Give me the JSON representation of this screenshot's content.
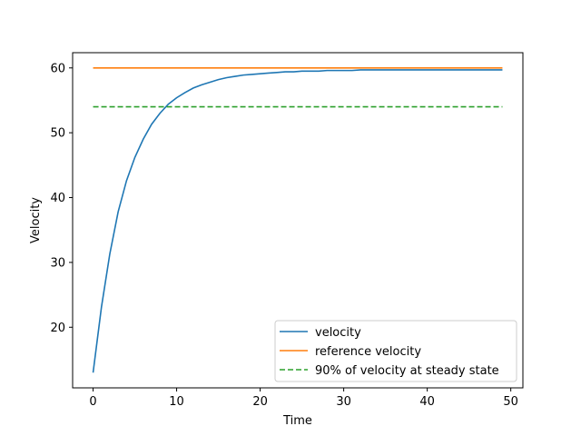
{
  "chart_data": {
    "type": "line",
    "title": "",
    "xlabel": "Time",
    "ylabel": "Velocity",
    "xlim": [
      -2.45,
      51.45
    ],
    "ylim": [
      10.65,
      62.35
    ],
    "x_ticks": [
      0,
      10,
      20,
      30,
      40,
      50
    ],
    "y_ticks": [
      20,
      30,
      40,
      50,
      60
    ],
    "x_tick_labels": [
      "0",
      "10",
      "20",
      "30",
      "40",
      "50"
    ],
    "y_tick_labels": [
      "20",
      "30",
      "40",
      "50",
      "60"
    ],
    "grid": false,
    "legend_position": "lower-right",
    "x": [
      0,
      1,
      2,
      3,
      4,
      5,
      6,
      7,
      8,
      9,
      10,
      11,
      12,
      13,
      14,
      15,
      16,
      17,
      18,
      19,
      20,
      21,
      22,
      23,
      24,
      25,
      26,
      27,
      28,
      29,
      30,
      31,
      32,
      33,
      34,
      35,
      36,
      37,
      38,
      39,
      40,
      41,
      42,
      43,
      44,
      45,
      46,
      47,
      48,
      49
    ],
    "series": [
      {
        "name": "velocity",
        "color": "#1f77b4",
        "style": "solid",
        "values": [
          13.0,
          23.1,
          31.3,
          37.8,
          42.6,
          46.2,
          49.0,
          51.3,
          53.0,
          54.4,
          55.4,
          56.2,
          56.9,
          57.4,
          57.8,
          58.2,
          58.5,
          58.7,
          58.9,
          59.0,
          59.1,
          59.2,
          59.3,
          59.4,
          59.4,
          59.5,
          59.5,
          59.5,
          59.6,
          59.6,
          59.6,
          59.6,
          59.7,
          59.7,
          59.7,
          59.7,
          59.7,
          59.7,
          59.7,
          59.7,
          59.7,
          59.7,
          59.7,
          59.7,
          59.7,
          59.7,
          59.7,
          59.7,
          59.7,
          59.7
        ]
      },
      {
        "name": "reference velocity",
        "color": "#ff7f0e",
        "style": "solid",
        "values": [
          60,
          60,
          60,
          60,
          60,
          60,
          60,
          60,
          60,
          60,
          60,
          60,
          60,
          60,
          60,
          60,
          60,
          60,
          60,
          60,
          60,
          60,
          60,
          60,
          60,
          60,
          60,
          60,
          60,
          60,
          60,
          60,
          60,
          60,
          60,
          60,
          60,
          60,
          60,
          60,
          60,
          60,
          60,
          60,
          60,
          60,
          60,
          60,
          60,
          60
        ]
      },
      {
        "name": "90% of velocity at steady state",
        "color": "#2ca02c",
        "style": "dashed",
        "values": [
          54,
          54,
          54,
          54,
          54,
          54,
          54,
          54,
          54,
          54,
          54,
          54,
          54,
          54,
          54,
          54,
          54,
          54,
          54,
          54,
          54,
          54,
          54,
          54,
          54,
          54,
          54,
          54,
          54,
          54,
          54,
          54,
          54,
          54,
          54,
          54,
          54,
          54,
          54,
          54,
          54,
          54,
          54,
          54,
          54,
          54,
          54,
          54,
          54,
          54
        ]
      }
    ]
  }
}
